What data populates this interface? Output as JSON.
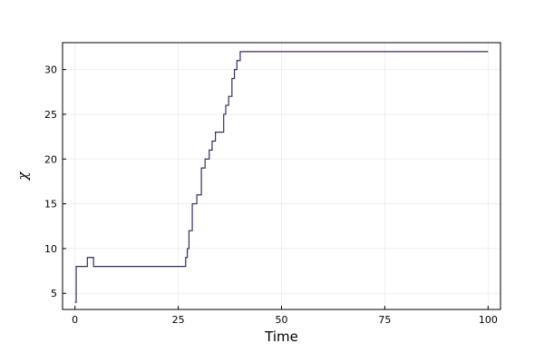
{
  "chart_data": {
    "type": "line",
    "xlabel": "Time",
    "ylabel": "χ",
    "xlim": [
      -3,
      103
    ],
    "ylim": [
      3.2,
      33
    ],
    "xticks": [
      0,
      25,
      50,
      75,
      100
    ],
    "yticks": [
      5,
      10,
      15,
      20,
      25,
      30
    ],
    "grid": true,
    "legend": "none",
    "line_color": "#3b2a5c",
    "series": [
      {
        "step": "post",
        "x": [
          0,
          0.3,
          3,
          4.5,
          26.5,
          26.8,
          27.2,
          27.6,
          28.4,
          29.5,
          30.6,
          31.5,
          32.5,
          33.2,
          34,
          36,
          36.5,
          37.2,
          38,
          38.6,
          39.2,
          40,
          100
        ],
        "values": [
          4,
          8,
          9,
          8,
          8,
          9,
          10,
          12,
          15,
          16,
          19,
          20,
          21,
          22,
          23,
          25,
          26,
          27,
          29,
          30,
          31,
          32,
          32
        ]
      }
    ]
  }
}
